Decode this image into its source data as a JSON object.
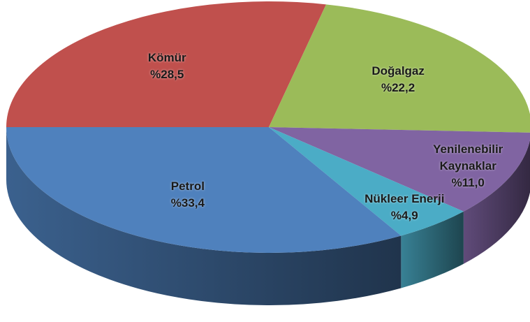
{
  "chart_data": {
    "type": "pie3d",
    "categories": [
      "Kömür",
      "Doğalgaz",
      "Yenilenebilir Kaynaklar",
      "Nükleer Enerji",
      "Petrol"
    ],
    "values": [
      28.5,
      22.2,
      11.0,
      4.9,
      33.4
    ],
    "value_labels": [
      "%28,5",
      "%22,2",
      "%11,0",
      "%4,9",
      "%33,4"
    ],
    "colors": [
      "#c0504d",
      "#9bbb59",
      "#8064a2",
      "#4bacc6",
      "#4f81bd"
    ]
  }
}
